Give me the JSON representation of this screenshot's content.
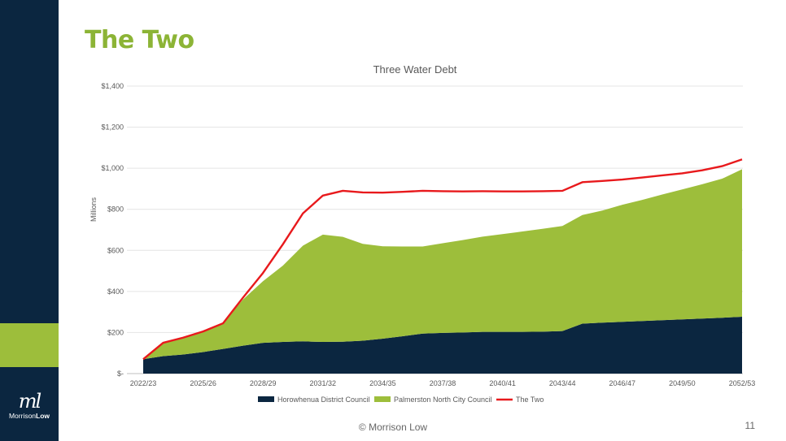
{
  "slide": {
    "title": "The Two",
    "footer": "© Morrison Low",
    "page_number": "11",
    "logo": {
      "mark": "ml",
      "text_light": "Morrison",
      "text_bold": "Low"
    }
  },
  "colors": {
    "sidebar": "#0b2640",
    "accent_green": "#9dbe3b",
    "title_green": "#8cb436",
    "series_horowhenua": "#0b2640",
    "series_palmerston": "#9dbe3b",
    "series_the_two": "#e8191c"
  },
  "chart_data": {
    "type": "area",
    "title": "Three Water Debt",
    "ylabel": "Millions",
    "xlabel": "",
    "ylim": [
      0,
      1400
    ],
    "yticks": [
      0,
      200,
      400,
      600,
      800,
      1000,
      1200,
      1400
    ],
    "ytick_labels": [
      "$-",
      "$200",
      "$400",
      "$600",
      "$800",
      "$1,000",
      "$1,200",
      "$1,400"
    ],
    "x": [
      "2022/23",
      "2023/24",
      "2024/25",
      "2025/26",
      "2026/27",
      "2027/28",
      "2028/29",
      "2029/30",
      "2030/31",
      "2031/32",
      "2032/33",
      "2033/34",
      "2034/35",
      "2035/36",
      "2036/37",
      "2037/38",
      "2038/39",
      "2039/40",
      "2040/41",
      "2041/42",
      "2042/43",
      "2043/44",
      "2044/45",
      "2045/46",
      "2046/47",
      "2047/48",
      "2048/49",
      "2049/50",
      "2050/51",
      "2051/52",
      "2052/53"
    ],
    "xtick_labels": [
      "2022/23",
      "2025/26",
      "2028/29",
      "2031/32",
      "2034/35",
      "2037/38",
      "2040/41",
      "2043/44",
      "2046/47",
      "2049/50",
      "2052/53"
    ],
    "xtick_every": 3,
    "grid": true,
    "legend_position": "bottom",
    "stacked": true,
    "series": [
      {
        "name": "Horowhenua District Council",
        "kind": "area",
        "values": [
          70,
          85,
          93,
          105,
          120,
          136,
          150,
          154,
          157,
          154,
          155,
          160,
          170,
          182,
          195,
          198,
          200,
          203,
          203,
          203,
          204,
          207,
          243,
          248,
          252,
          256,
          260,
          264,
          268,
          272,
          277
        ]
      },
      {
        "name": "Palmerston North City Council",
        "kind": "area",
        "values": [
          0,
          65,
          82,
          100,
          125,
          225,
          300,
          372,
          466,
          523,
          511,
          472,
          450,
          437,
          424,
          437,
          450,
          464,
          476,
          489,
          501,
          512,
          529,
          546,
          570,
          590,
          612,
          633,
          654,
          677,
          718
        ]
      },
      {
        "name": "The Two",
        "kind": "line",
        "values": [
          70,
          150,
          175,
          205,
          245,
          370,
          490,
          630,
          780,
          867,
          890,
          882,
          881,
          885,
          890,
          888,
          887,
          888,
          887,
          887,
          888,
          890,
          932,
          938,
          945,
          955,
          965,
          975,
          990,
          1010,
          1043
        ]
      }
    ]
  }
}
